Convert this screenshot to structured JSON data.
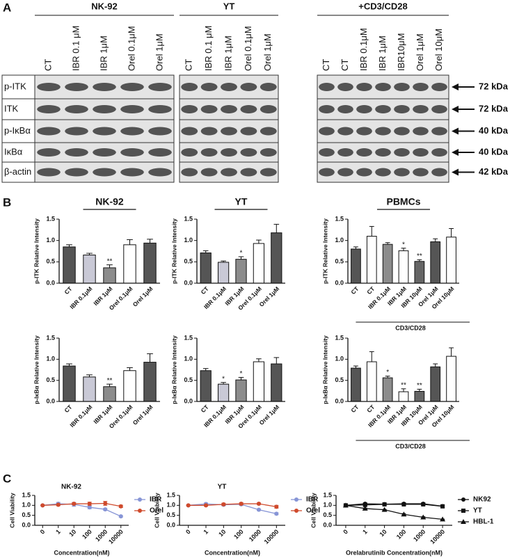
{
  "panel_labels": [
    "A",
    "B",
    "C"
  ],
  "panel_a": {
    "groups": [
      {
        "title": "NK-92",
        "lanes": [
          "CT",
          "IBR 0.1 μM",
          "IBR 1μM",
          "Orel 0.1μM",
          "Orel 1μM"
        ]
      },
      {
        "title": "YT",
        "lanes": [
          "CT",
          "IBR 0.1 μM",
          "IBR 1μM",
          "Orel 0.1μM",
          "Orel 1μM"
        ]
      },
      {
        "title": "+CD3/CD28",
        "lanes": [
          "CT",
          "CT",
          "IBR 0.1μM",
          "IBR 1μM",
          "IBR10μM",
          "Orel 1μM",
          "Orel 10μM"
        ]
      }
    ],
    "rows": [
      {
        "label": "p-ITK",
        "size": "72 kDa"
      },
      {
        "label": "ITK",
        "size": "72 kDa"
      },
      {
        "label": "p-IκBα",
        "size": "40 kDa"
      },
      {
        "label": "IκBα",
        "size": "40 kDa"
      },
      {
        "label": "β-actin",
        "size": "42 kDa"
      }
    ]
  },
  "chart_data": [
    {
      "type": "bar",
      "title": "NK-92",
      "y_label": "p-ITK Relative Intensity",
      "categories": [
        "CT",
        "IBR 0.1μM",
        "IBR 1μM",
        "Orel 0.1μM",
        "Orel 1μM"
      ],
      "values": [
        0.85,
        0.66,
        0.36,
        0.9,
        0.94
      ],
      "errors": [
        0.05,
        0.04,
        0.07,
        0.12,
        0.09
      ],
      "annotations": [
        null,
        null,
        "**",
        null,
        null
      ],
      "colors": [
        "#555555",
        "#c9c9d6",
        "#8c8c8c",
        "#ffffff",
        "#555555"
      ],
      "ylim": [
        0,
        1.5
      ],
      "yticks": [
        {
          "value": 0,
          "label": "0.0"
        },
        0.5,
        {
          "value": 1,
          "label": "1.0"
        },
        1.5
      ]
    },
    {
      "type": "bar",
      "title": "YT",
      "y_label": "p-ITK Relative Intensity",
      "categories": [
        "CT",
        "IBR 0.1μM",
        "IBR 1μM",
        "Orel 0.1μM",
        "Orel 1μM"
      ],
      "values": [
        0.71,
        0.49,
        0.56,
        0.93,
        1.18
      ],
      "errors": [
        0.05,
        0.03,
        0.06,
        0.08,
        0.2
      ],
      "annotations": [
        null,
        null,
        "*",
        null,
        null
      ],
      "colors": [
        "#555555",
        "#c9c9d6",
        "#8c8c8c",
        "#ffffff",
        "#555555"
      ],
      "ylim": [
        0,
        1.5
      ],
      "yticks": [
        {
          "value": 0,
          "label": "0.0"
        },
        0.5,
        {
          "value": 1,
          "label": "1.0"
        },
        1.5
      ]
    },
    {
      "type": "bar",
      "title": "PBMCs",
      "y_label": "p-ITK Relative Intensity",
      "group_label": "CD3/CD28",
      "categories": [
        "CT",
        "CT",
        "IBR 0.1μM",
        "IBR 1μM",
        "IBR 10μM",
        "Orel 1μM",
        "Orel 10μM"
      ],
      "values": [
        0.8,
        1.1,
        0.91,
        0.76,
        0.51,
        0.97,
        1.08
      ],
      "errors": [
        0.05,
        0.23,
        0.04,
        0.06,
        0.04,
        0.07,
        0.2
      ],
      "annotations": [
        null,
        null,
        null,
        "*",
        "**",
        null,
        null
      ],
      "colors": [
        "#555555",
        "#ffffff",
        "#8c8c8c",
        "#ffffff",
        "#666666",
        "#555555",
        "#ffffff"
      ],
      "ylim": [
        0,
        1.5
      ],
      "yticks": [
        {
          "value": 0,
          "label": "0.0"
        },
        0.5,
        {
          "value": 1,
          "label": "1.0"
        },
        1.5
      ]
    },
    {
      "type": "bar",
      "y_label": "p-IκBα Relative Intensity",
      "categories": [
        "CT",
        "IBR 0.1μM",
        "IBR 1μM",
        "Orel 0.1μM",
        "Orel 1μM"
      ],
      "values": [
        0.84,
        0.58,
        0.35,
        0.73,
        0.93
      ],
      "errors": [
        0.05,
        0.05,
        0.06,
        0.07,
        0.2
      ],
      "annotations": [
        null,
        null,
        "**",
        null,
        null
      ],
      "colors": [
        "#555555",
        "#c9c9d6",
        "#8c8c8c",
        "#ffffff",
        "#555555"
      ],
      "ylim": [
        0,
        1.5
      ],
      "yticks": [
        {
          "value": 0,
          "label": "0.0"
        },
        0.5,
        {
          "value": 1,
          "label": "1.0"
        },
        1.5
      ]
    },
    {
      "type": "bar",
      "y_label": "p-IκBα Relative Intensity",
      "categories": [
        "CT",
        "IBR 0.1μM",
        "IBR 1μM",
        "Orel 0.1μM",
        "Orel 1μM"
      ],
      "values": [
        0.73,
        0.41,
        0.51,
        0.94,
        0.89
      ],
      "errors": [
        0.05,
        0.04,
        0.06,
        0.07,
        0.15
      ],
      "annotations": [
        null,
        "*",
        "*",
        null,
        null
      ],
      "colors": [
        "#555555",
        "#c9c9d6",
        "#8c8c8c",
        "#ffffff",
        "#555555"
      ],
      "ylim": [
        0,
        1.5
      ],
      "yticks": [
        {
          "value": 0,
          "label": "0.0"
        },
        0.5,
        {
          "value": 1,
          "label": "1.0"
        },
        1.5
      ]
    },
    {
      "type": "bar",
      "y_label": "p-IκBα Relative Intensity",
      "group_label": "CD3/CD28",
      "categories": [
        "CT",
        "CT",
        "IBR 0.1μM",
        "IBR 1μM",
        "IBR 10μM",
        "Orel 1μM",
        "Orel 10μM"
      ],
      "values": [
        0.79,
        0.94,
        0.56,
        0.23,
        0.24,
        0.82,
        1.07
      ],
      "errors": [
        0.05,
        0.24,
        0.04,
        0.07,
        0.05,
        0.07,
        0.2
      ],
      "annotations": [
        null,
        null,
        "*",
        "**",
        "**",
        null,
        null
      ],
      "colors": [
        "#555555",
        "#ffffff",
        "#8c8c8c",
        "#ffffff",
        "#666666",
        "#555555",
        "#ffffff"
      ],
      "ylim": [
        0,
        1.5
      ],
      "yticks": [
        {
          "value": 0,
          "label": "0.0"
        },
        0.5,
        {
          "value": 1,
          "label": "1.0"
        },
        1.5
      ]
    },
    {
      "type": "line",
      "title": "NK-92",
      "y_label": "Cell Viability",
      "x_label": "Concentration(nM)",
      "categories": [
        "0",
        "1",
        "10",
        "100",
        "1000",
        "10000"
      ],
      "series": [
        {
          "name": "IBR",
          "color": "#8795d6",
          "marker": "circle",
          "values": [
            1.0,
            1.08,
            1.05,
            0.9,
            0.8,
            0.45
          ],
          "errors": [
            0.02,
            0.07,
            0.1,
            0.07,
            0.05,
            0.04
          ]
        },
        {
          "name": "Orel",
          "color": "#cf4a2c",
          "marker": "circle",
          "values": [
            1.0,
            1.03,
            1.08,
            1.08,
            1.1,
            0.95
          ],
          "errors": [
            0.02,
            0.05,
            0.05,
            0.08,
            0.1,
            0.06
          ]
        }
      ],
      "ylim": [
        0,
        1.5
      ],
      "yticks": [
        {
          "value": 0,
          "label": "0.0"
        },
        0.5,
        {
          "value": 1,
          "label": "1.0"
        },
        1.5
      ]
    },
    {
      "type": "line",
      "title": "YT",
      "y_label": "Cell Viability",
      "x_label": "Concentration(nM)",
      "categories": [
        "0",
        "1",
        "10",
        "100",
        "1000",
        "10000"
      ],
      "series": [
        {
          "name": "IBR",
          "color": "#8795d6",
          "marker": "circle",
          "values": [
            1.0,
            1.07,
            1.03,
            1.05,
            0.78,
            0.58
          ],
          "errors": [
            0.02,
            0.05,
            0.05,
            0.05,
            0.04,
            0.05
          ]
        },
        {
          "name": "Orel",
          "color": "#cf4a2c",
          "marker": "circle",
          "values": [
            1.0,
            1.0,
            1.05,
            1.08,
            1.08,
            0.93
          ],
          "errors": [
            0.02,
            0.04,
            0.06,
            0.06,
            0.04,
            0.07
          ]
        }
      ],
      "ylim": [
        0,
        1.5
      ],
      "yticks": [
        {
          "value": 0,
          "label": "0.0"
        },
        0.5,
        {
          "value": 1,
          "label": "1.0"
        },
        1.5
      ]
    },
    {
      "type": "line",
      "y_label": "Cell Viability",
      "x_label": "Orelabrutinib  Concentration(nM)",
      "categories": [
        "0",
        "1",
        "10",
        "100",
        "1000",
        "10000"
      ],
      "series": [
        {
          "name": "NK92",
          "color": "#111111",
          "marker": "circle",
          "values": [
            1.0,
            1.08,
            1.06,
            1.08,
            1.08,
            0.96
          ],
          "errors": [
            0.02,
            0.05,
            0.05,
            0.04,
            0.04,
            0.05
          ]
        },
        {
          "name": "YT",
          "color": "#111111",
          "marker": "square",
          "values": [
            1.0,
            1.02,
            1.05,
            1.05,
            1.05,
            0.95
          ],
          "errors": [
            0.02,
            0.04,
            0.05,
            0.04,
            0.04,
            0.06
          ]
        },
        {
          "name": "HBL-1",
          "color": "#111111",
          "marker": "triangle",
          "values": [
            1.0,
            0.84,
            0.78,
            0.55,
            0.4,
            0.3
          ],
          "errors": [
            0.02,
            0.02,
            0.02,
            0.04,
            0.03,
            0.01
          ]
        }
      ],
      "ylim": [
        0,
        1.5
      ],
      "yticks": [
        {
          "value": 0,
          "label": "0.0"
        },
        0.5,
        {
          "value": 1,
          "label": "1.0"
        },
        1.5
      ]
    }
  ]
}
